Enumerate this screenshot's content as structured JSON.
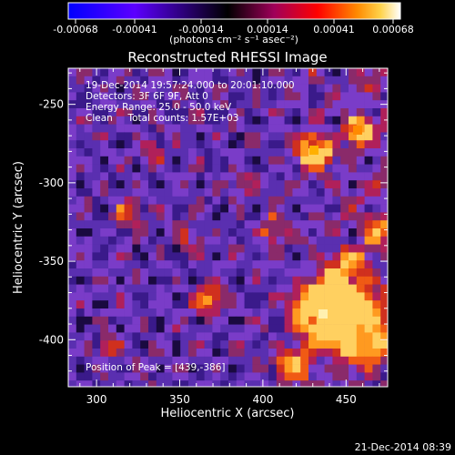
{
  "colorbar": {
    "tick_labels": [
      "-0.00068",
      "-0.00041",
      "-0.00014",
      "0.00014",
      "0.00041",
      "0.00068"
    ],
    "units": "(photons cm⁻² s⁻¹ asec⁻²)",
    "colors": [
      "#0000ff",
      "#5c00ff",
      "#000000",
      "#a0005a",
      "#ff0000",
      "#ff8a00",
      "#ffd24a",
      "#ffffff"
    ]
  },
  "image": {
    "title": "Reconstructed RHESSI Image",
    "info_lines": [
      "19-Dec-2014 19:57:24.000 to 20:01:10.000",
      "Detectors: 3F 6F 9F, Att 0",
      "Energy Range: 25.0 - 50.0 keV",
      "Clean     Total counts: 1.57E+03"
    ],
    "peak_text": "Position of Peak = [439,-386]",
    "xlabel": "Heliocentric X (arcsec)",
    "ylabel": "Heliocentric Y (arcsec)",
    "xticks": [
      "300",
      "350",
      "400",
      "450"
    ],
    "yticks": [
      "-250",
      "-300",
      "-350",
      "-400"
    ],
    "xlim": [
      283,
      475
    ],
    "ylim": [
      -430,
      -227
    ],
    "palette": [
      "#1a0a40",
      "#3a1a8a",
      "#5a2fb0",
      "#7a3cc8",
      "#8a2a6a",
      "#b0205a",
      "#d0301e",
      "#f05a14",
      "#ff9a20",
      "#ffd060"
    ]
  },
  "timestamp": "21-Dec-2014 08:39"
}
